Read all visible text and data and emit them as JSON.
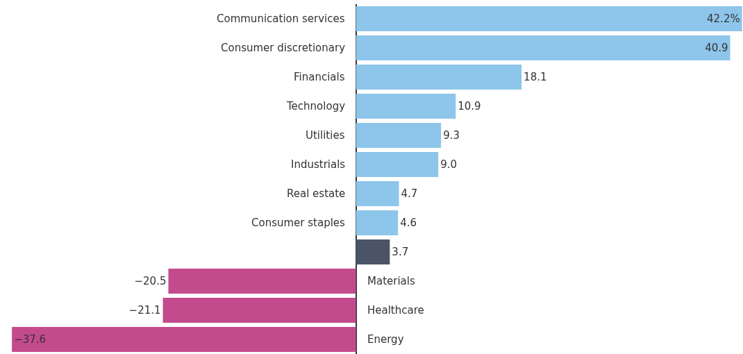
{
  "chart_data": {
    "type": "bar",
    "orientation": "horizontal",
    "categories": [
      "Communication services",
      "Consumer discretionary",
      "Financials",
      "Technology",
      "Utilities",
      "Industrials",
      "Real estate",
      "Consumer staples",
      null,
      "Materials",
      "Healthcare",
      "Energy"
    ],
    "values": [
      42.2,
      40.9,
      18.1,
      10.9,
      9.3,
      9.0,
      4.7,
      4.6,
      3.7,
      -20.5,
      -21.1,
      -37.6
    ],
    "value_labels": [
      "42.2%",
      "40.9",
      "18.1",
      "10.9",
      "9.3",
      "9.0",
      "4.7",
      "4.6",
      "3.7",
      "−20.5",
      "−21.1",
      "−37.6"
    ],
    "colors": [
      "#8ec5ea",
      "#8ec5ea",
      "#8ec5ea",
      "#8ec5ea",
      "#8ec5ea",
      "#8ec5ea",
      "#8ec5ea",
      "#8ec5ea",
      "#4b5366",
      "#c44a8e",
      "#c44a8e",
      "#c44a8e"
    ],
    "xlim": [
      -38.9,
      42.3
    ],
    "tick_labels": false,
    "legend": false
  }
}
